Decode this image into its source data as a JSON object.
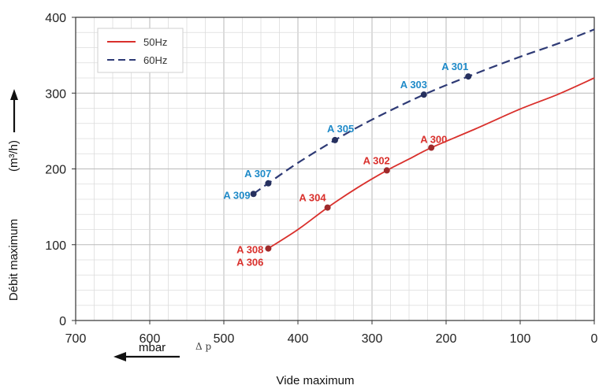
{
  "chart_data": {
    "type": "line",
    "xlabel": "Vide maximum",
    "ylabel": "Débit maximum",
    "ylabel_unit": "(m³/h)",
    "x_unit_label": "mbar",
    "x_symbol": "Δ p",
    "xlim": [
      700,
      0
    ],
    "ylim": [
      0,
      400
    ],
    "x_ticks": [
      700,
      600,
      500,
      400,
      300,
      200,
      100,
      0
    ],
    "y_ticks": [
      0,
      100,
      200,
      300,
      400
    ],
    "grid": true,
    "legend_position": "top-left",
    "series": [
      {
        "name": "50Hz",
        "color": "#d9302c",
        "style": "solid",
        "points": [
          [
            440,
            95
          ],
          [
            400,
            120
          ],
          [
            360,
            149
          ],
          [
            320,
            175
          ],
          [
            280,
            198
          ],
          [
            250,
            213
          ],
          [
            220,
            228
          ],
          [
            160,
            253
          ],
          [
            100,
            279
          ],
          [
            50,
            298
          ],
          [
            0,
            320
          ]
        ],
        "labeled_points": [
          {
            "label": "A 308",
            "x": 440,
            "y": 95
          },
          {
            "label": "A 306",
            "x": 440,
            "y": 95
          },
          {
            "label": "A 304",
            "x": 360,
            "y": 149
          },
          {
            "label": "A 302",
            "x": 280,
            "y": 198
          },
          {
            "label": "A 300",
            "x": 220,
            "y": 228
          }
        ]
      },
      {
        "name": "60Hz",
        "color": "#2e3a75",
        "style": "dashed",
        "points": [
          [
            460,
            167
          ],
          [
            440,
            181
          ],
          [
            400,
            208
          ],
          [
            350,
            238
          ],
          [
            300,
            265
          ],
          [
            230,
            298
          ],
          [
            170,
            322
          ],
          [
            100,
            348
          ],
          [
            50,
            365
          ],
          [
            0,
            384
          ]
        ],
        "labeled_points": [
          {
            "label": "A 309",
            "x": 460,
            "y": 167
          },
          {
            "label": "A 307",
            "x": 440,
            "y": 181
          },
          {
            "label": "A 305",
            "x": 350,
            "y": 238
          },
          {
            "label": "A 303",
            "x": 230,
            "y": 298
          },
          {
            "label": "A 301",
            "x": 170,
            "y": 322
          }
        ]
      }
    ],
    "label_color_50hz": "#d9302c",
    "label_color_60hz": "#1f8ac8"
  }
}
